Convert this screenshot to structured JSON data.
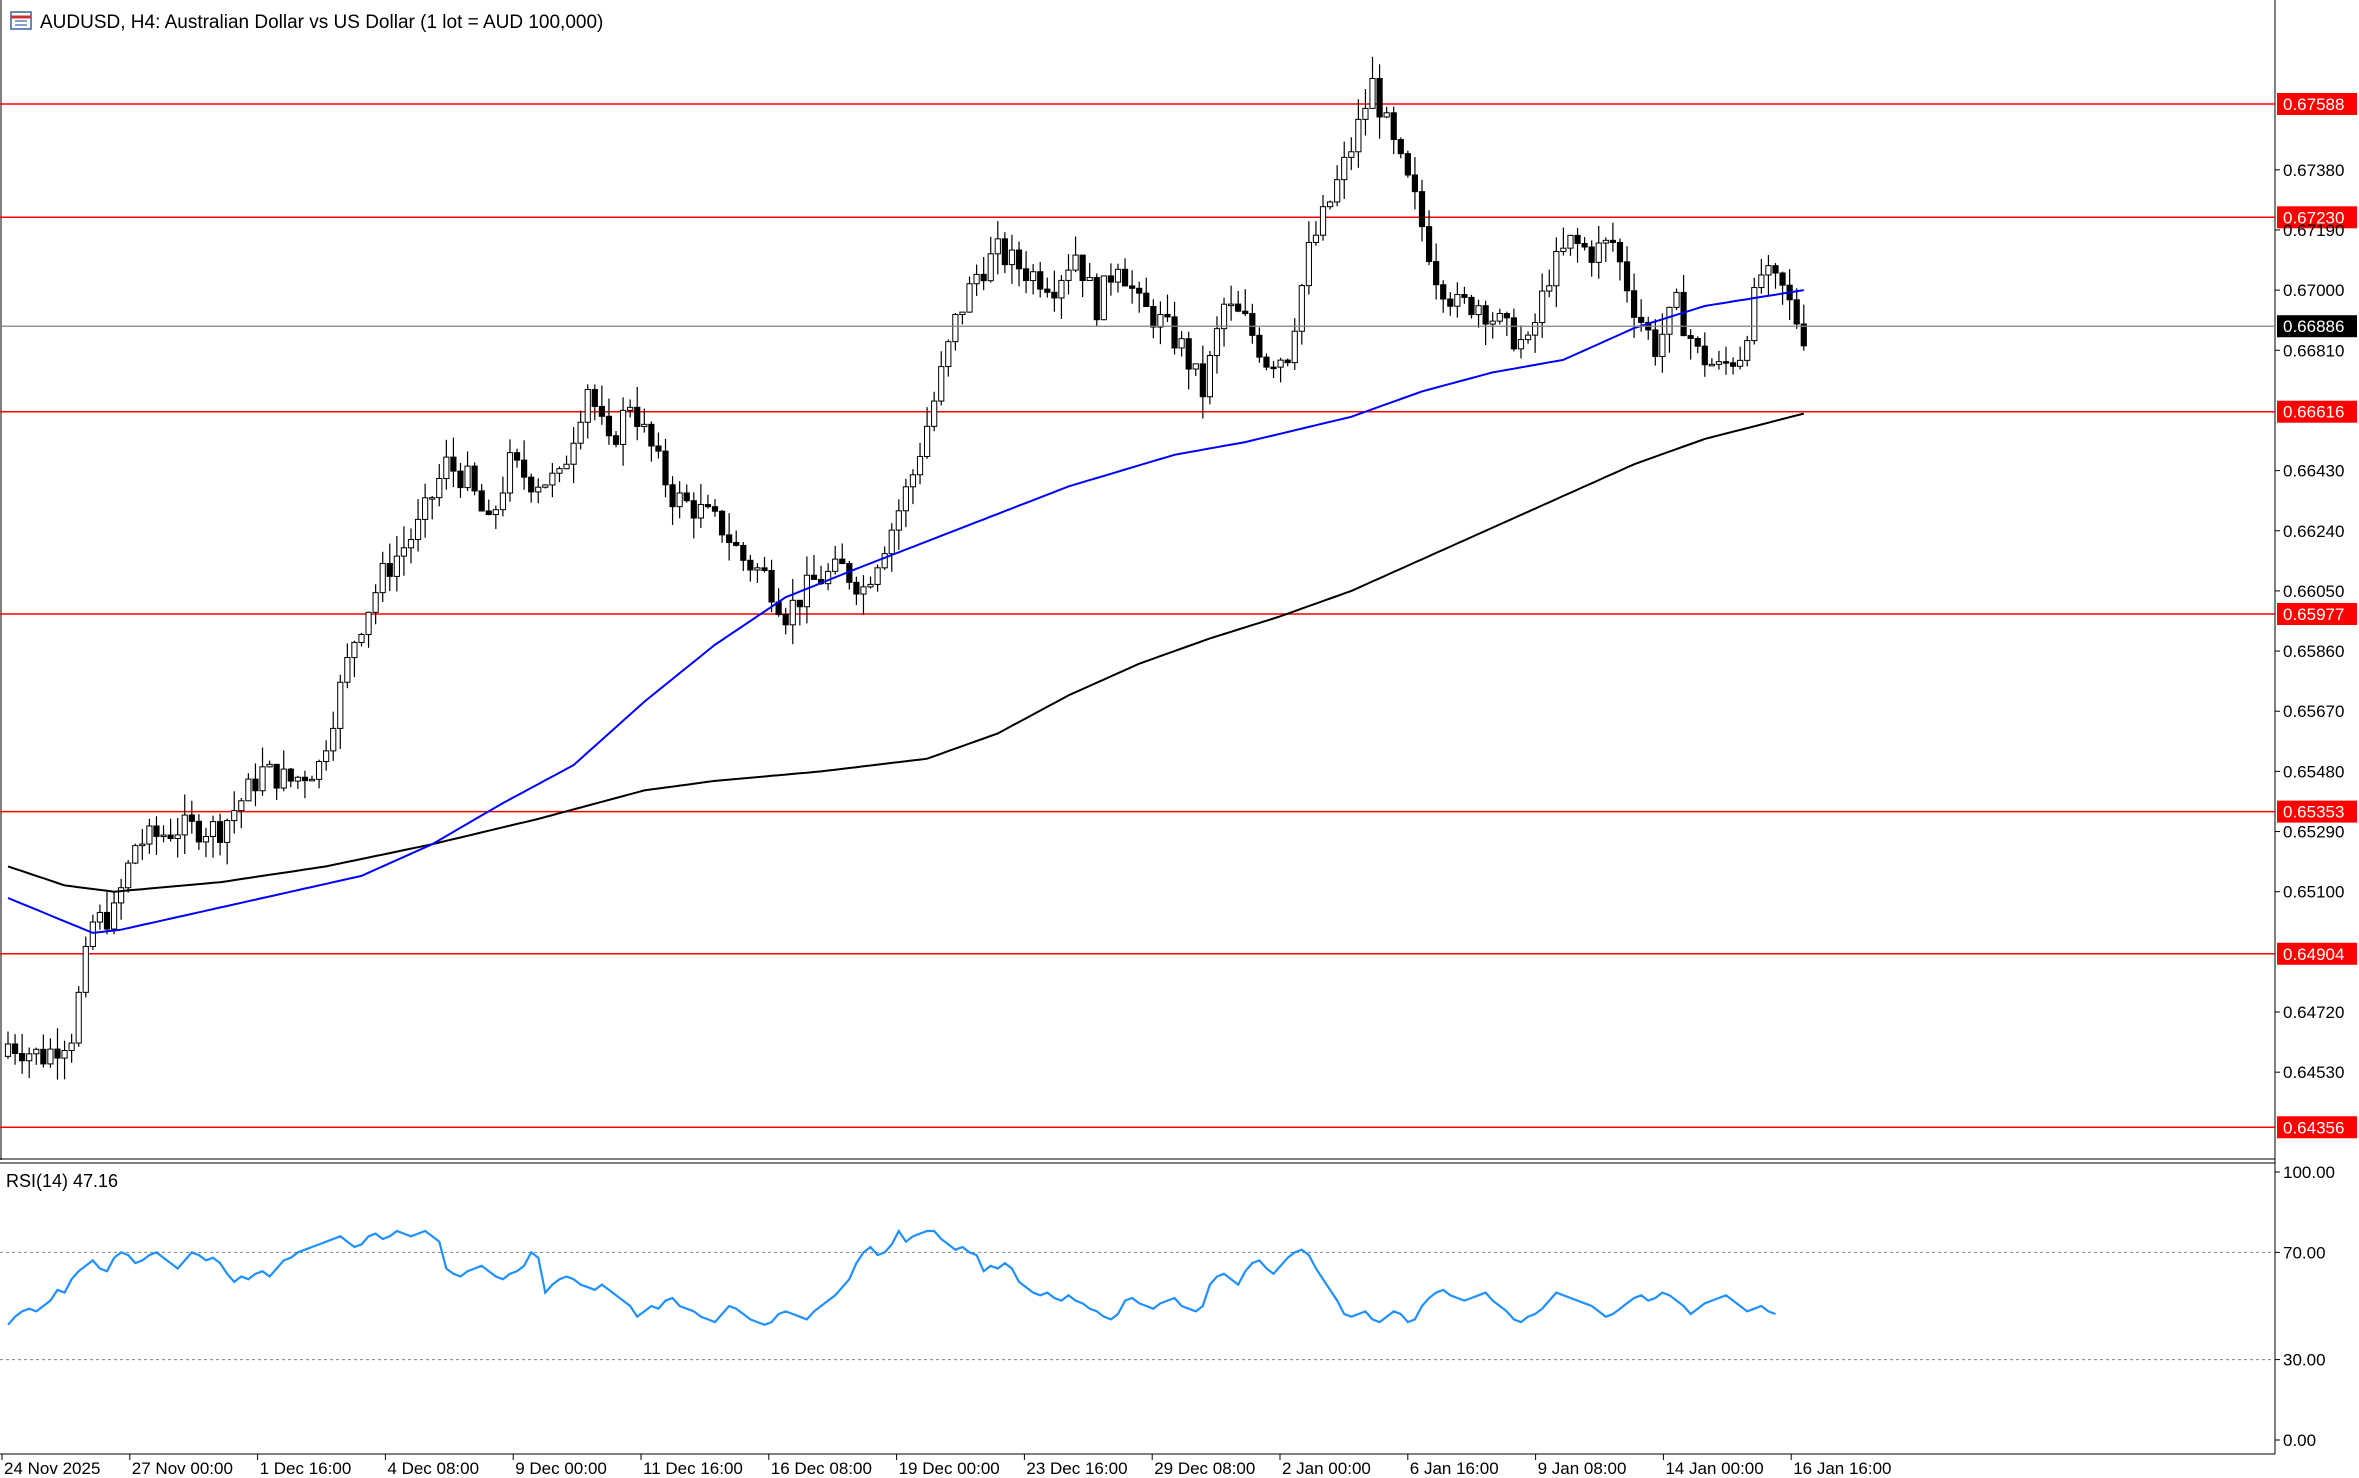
{
  "window": {
    "title": "AUDUSD, H4:  Australian Dollar vs US Dollar (1 lot = AUD 100,000)",
    "icon": "chart-window-icon"
  },
  "colors": {
    "bull_body": "#ffffff",
    "bear_body": "#000000",
    "wick": "#000000",
    "ma_fast": "#0000ff",
    "ma_slow": "#000000",
    "level_line": "#ff0000",
    "level_label_bg": "#ff0000",
    "level_label_text": "#ffffff",
    "current_price_bg": "#000000",
    "current_price_line": "#808080",
    "rsi_line": "#1e90ff",
    "rsi_levels": "#808080",
    "axis_text": "#000000"
  },
  "chart_data": [
    {
      "type": "candlestick",
      "symbol": "AUDUSD",
      "timeframe": "H4",
      "ylim": [
        0.643,
        0.6779
      ],
      "y_ticks": [
        "0.67380",
        "0.67190",
        "0.67000",
        "0.66810",
        "0.66430",
        "0.66240",
        "0.66050",
        "0.65860",
        "0.65670",
        "0.65480",
        "0.65290",
        "0.65100",
        "0.64720",
        "0.64530"
      ],
      "x_ticks": [
        "24 Nov 2025",
        "27 Nov 00:00",
        "1 Dec 16:00",
        "4 Dec 08:00",
        "9 Dec 00:00",
        "11 Dec 16:00",
        "16 Dec 08:00",
        "19 Dec 00:00",
        "23 Dec 16:00",
        "29 Dec 08:00",
        "2 Jan 00:00",
        "6 Jan 16:00",
        "9 Jan 08:00",
        "14 Jan 00:00",
        "16 Jan 16:00"
      ],
      "levels": [
        {
          "label": "0.67588",
          "value": 0.67588
        },
        {
          "label": "0.67230",
          "value": 0.6723
        },
        {
          "label": "0.66616",
          "value": 0.66616
        },
        {
          "label": "0.65977",
          "value": 0.65977
        },
        {
          "label": "0.65353",
          "value": 0.65353
        },
        {
          "label": "0.64904",
          "value": 0.64904
        },
        {
          "label": "0.64356",
          "value": 0.64356
        }
      ],
      "current_price": {
        "label": "0.66886",
        "value": 0.66886
      },
      "anchors": [
        {
          "i": 0,
          "c": 0.6462
        },
        {
          "i": 5,
          "c": 0.6458
        },
        {
          "i": 9,
          "c": 0.6465
        },
        {
          "i": 12,
          "c": 0.65
        },
        {
          "i": 15,
          "c": 0.6503
        },
        {
          "i": 18,
          "c": 0.6525
        },
        {
          "i": 24,
          "c": 0.653
        },
        {
          "i": 30,
          "c": 0.653
        },
        {
          "i": 36,
          "c": 0.6548
        },
        {
          "i": 40,
          "c": 0.6545
        },
        {
          "i": 44,
          "c": 0.655
        },
        {
          "i": 49,
          "c": 0.659
        },
        {
          "i": 53,
          "c": 0.661
        },
        {
          "i": 58,
          "c": 0.6625
        },
        {
          "i": 62,
          "c": 0.6645
        },
        {
          "i": 65,
          "c": 0.664
        },
        {
          "i": 68,
          "c": 0.6625
        },
        {
          "i": 71,
          "c": 0.6645
        },
        {
          "i": 74,
          "c": 0.664
        },
        {
          "i": 78,
          "c": 0.664
        },
        {
          "i": 82,
          "c": 0.667
        },
        {
          "i": 85,
          "c": 0.665
        },
        {
          "i": 88,
          "c": 0.6665
        },
        {
          "i": 91,
          "c": 0.665
        },
        {
          "i": 94,
          "c": 0.6635
        },
        {
          "i": 98,
          "c": 0.663
        },
        {
          "i": 101,
          "c": 0.6625
        },
        {
          "i": 104,
          "c": 0.6615
        },
        {
          "i": 107,
          "c": 0.661
        },
        {
          "i": 110,
          "c": 0.6598
        },
        {
          "i": 114,
          "c": 0.6608
        },
        {
          "i": 118,
          "c": 0.6612
        },
        {
          "i": 121,
          "c": 0.6606
        },
        {
          "i": 125,
          "c": 0.6625
        },
        {
          "i": 128,
          "c": 0.6642
        },
        {
          "i": 131,
          "c": 0.6665
        },
        {
          "i": 134,
          "c": 0.669
        },
        {
          "i": 137,
          "c": 0.6705
        },
        {
          "i": 140,
          "c": 0.6712
        },
        {
          "i": 144,
          "c": 0.6706
        },
        {
          "i": 148,
          "c": 0.6702
        },
        {
          "i": 151,
          "c": 0.6712
        },
        {
          "i": 154,
          "c": 0.6695
        },
        {
          "i": 157,
          "c": 0.671
        },
        {
          "i": 160,
          "c": 0.6695
        },
        {
          "i": 163,
          "c": 0.669
        },
        {
          "i": 166,
          "c": 0.6682
        },
        {
          "i": 169,
          "c": 0.6668
        },
        {
          "i": 172,
          "c": 0.6695
        },
        {
          "i": 175,
          "c": 0.669
        },
        {
          "i": 178,
          "c": 0.6678
        },
        {
          "i": 181,
          "c": 0.668
        },
        {
          "i": 184,
          "c": 0.6712
        },
        {
          "i": 187,
          "c": 0.6728
        },
        {
          "i": 190,
          "c": 0.6745
        },
        {
          "i": 193,
          "c": 0.6765
        },
        {
          "i": 196,
          "c": 0.6745
        },
        {
          "i": 199,
          "c": 0.6728
        },
        {
          "i": 202,
          "c": 0.6705
        },
        {
          "i": 205,
          "c": 0.6695
        },
        {
          "i": 208,
          "c": 0.6696
        },
        {
          "i": 212,
          "c": 0.6687
        },
        {
          "i": 215,
          "c": 0.6682
        },
        {
          "i": 218,
          "c": 0.6705
        },
        {
          "i": 221,
          "c": 0.6715
        },
        {
          "i": 224,
          "c": 0.6712
        },
        {
          "i": 227,
          "c": 0.6715
        },
        {
          "i": 230,
          "c": 0.6695
        },
        {
          "i": 233,
          "c": 0.6682
        },
        {
          "i": 236,
          "c": 0.6695
        },
        {
          "i": 239,
          "c": 0.668
        },
        {
          "i": 242,
          "c": 0.6675
        },
        {
          "i": 245,
          "c": 0.668
        },
        {
          "i": 248,
          "c": 0.6705
        },
        {
          "i": 251,
          "c": 0.67
        },
        {
          "i": 254,
          "c": 0.6686
        }
      ],
      "ma_fast_anchors": [
        {
          "i": 0,
          "v": 0.6508
        },
        {
          "i": 12,
          "v": 0.6497
        },
        {
          "i": 16,
          "v": 0.6498
        },
        {
          "i": 30,
          "v": 0.6505
        },
        {
          "i": 50,
          "v": 0.6515
        },
        {
          "i": 60,
          "v": 0.6525
        },
        {
          "i": 70,
          "v": 0.6538
        },
        {
          "i": 80,
          "v": 0.655
        },
        {
          "i": 90,
          "v": 0.657
        },
        {
          "i": 100,
          "v": 0.6588
        },
        {
          "i": 110,
          "v": 0.6603
        },
        {
          "i": 120,
          "v": 0.6612
        },
        {
          "i": 135,
          "v": 0.6625
        },
        {
          "i": 150,
          "v": 0.6638
        },
        {
          "i": 165,
          "v": 0.6648
        },
        {
          "i": 175,
          "v": 0.6652
        },
        {
          "i": 190,
          "v": 0.666
        },
        {
          "i": 200,
          "v": 0.6668
        },
        {
          "i": 210,
          "v": 0.6674
        },
        {
          "i": 220,
          "v": 0.6678
        },
        {
          "i": 230,
          "v": 0.6688
        },
        {
          "i": 240,
          "v": 0.6695
        },
        {
          "i": 254,
          "v": 0.67
        }
      ],
      "ma_slow_anchors": [
        {
          "i": 0,
          "v": 0.6518
        },
        {
          "i": 8,
          "v": 0.6512
        },
        {
          "i": 15,
          "v": 0.651
        },
        {
          "i": 30,
          "v": 0.6513
        },
        {
          "i": 45,
          "v": 0.6518
        },
        {
          "i": 60,
          "v": 0.6525
        },
        {
          "i": 75,
          "v": 0.6533
        },
        {
          "i": 90,
          "v": 0.6542
        },
        {
          "i": 100,
          "v": 0.6545
        },
        {
          "i": 115,
          "v": 0.6548
        },
        {
          "i": 130,
          "v": 0.6552
        },
        {
          "i": 140,
          "v": 0.656
        },
        {
          "i": 150,
          "v": 0.6572
        },
        {
          "i": 160,
          "v": 0.6582
        },
        {
          "i": 170,
          "v": 0.659
        },
        {
          "i": 180,
          "v": 0.6597
        },
        {
          "i": 190,
          "v": 0.6605
        },
        {
          "i": 200,
          "v": 0.6615
        },
        {
          "i": 210,
          "v": 0.6625
        },
        {
          "i": 220,
          "v": 0.6635
        },
        {
          "i": 230,
          "v": 0.6645
        },
        {
          "i": 240,
          "v": 0.6653
        },
        {
          "i": 254,
          "v": 0.6661
        }
      ]
    },
    {
      "type": "line",
      "title": "RSI(14) 47.16",
      "ylim": [
        0,
        100
      ],
      "y_ticks": [
        "100.00",
        "70.00",
        "30.00",
        "0.00"
      ],
      "levels": [
        70,
        30
      ],
      "series": [
        {
          "values": [
            43,
            46,
            48,
            49,
            48,
            50,
            52,
            56,
            55,
            60,
            63,
            65,
            67,
            64,
            63,
            68,
            70,
            69,
            66,
            67,
            69,
            70,
            68,
            66,
            64,
            67,
            70,
            69,
            67,
            68,
            66,
            62,
            59,
            61,
            60,
            62,
            63,
            61,
            64,
            67,
            68,
            70,
            71,
            72,
            73,
            74,
            75,
            76,
            74,
            72,
            73,
            76,
            77,
            75,
            76,
            78,
            77,
            76,
            77,
            78,
            76,
            74,
            64,
            62,
            61,
            63,
            64,
            65,
            63,
            61,
            60,
            62,
            63,
            65,
            70,
            68,
            55,
            58,
            60,
            61,
            60,
            58,
            57,
            56,
            58,
            56,
            54,
            52,
            50,
            46,
            48,
            50,
            49,
            52,
            53,
            50,
            49,
            48,
            46,
            45,
            44,
            47,
            50,
            49,
            47,
            45,
            44,
            43,
            44,
            47,
            48,
            47,
            46,
            45,
            48,
            50,
            52,
            54,
            57,
            60,
            66,
            70,
            72,
            69,
            70,
            73,
            78,
            74,
            76,
            77,
            78,
            78,
            75,
            73,
            71,
            72,
            70,
            69,
            63,
            65,
            64,
            66,
            64,
            59,
            57,
            55,
            54,
            55,
            53,
            52,
            54,
            52,
            51,
            49,
            48,
            46,
            45,
            47,
            52,
            53,
            51,
            50,
            49,
            51,
            52,
            53,
            50,
            49,
            48,
            50,
            58,
            61,
            62,
            60,
            58,
            63,
            66,
            67,
            64,
            62,
            65,
            68,
            70,
            71,
            69,
            64,
            60,
            56,
            52,
            47,
            46,
            47,
            48,
            45,
            44,
            46,
            48,
            47,
            44,
            45,
            50,
            53,
            55,
            56,
            54,
            53,
            52,
            53,
            54,
            55,
            52,
            50,
            48,
            45,
            44,
            46,
            47,
            49,
            52,
            55,
            54,
            53,
            52,
            51,
            50,
            48,
            46,
            47,
            49,
            51,
            53,
            54,
            52,
            53,
            55,
            54,
            52,
            50,
            47,
            49,
            51,
            52,
            53,
            54,
            52,
            50,
            48,
            49,
            50,
            48,
            47
          ]
        }
      ]
    }
  ]
}
